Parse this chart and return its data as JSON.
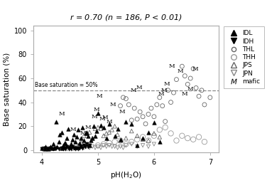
{
  "title": "$r$ = 0.70 ($n$ = 186, $P$ < 0.01)",
  "xlabel": "pH(H$_2$O)",
  "ylabel": "Base saturation (%)",
  "xlim": [
    3.85,
    7.15
  ],
  "ylim": [
    -2,
    104
  ],
  "xticks": [
    4,
    5,
    6,
    7
  ],
  "yticks": [
    0,
    20,
    40,
    60,
    80,
    100
  ],
  "dashed_line_y": 50,
  "dashed_label": "Base saturation = 50%",
  "IDL_x": [
    4.0,
    4.05,
    4.07,
    4.1,
    4.12,
    4.15,
    4.18,
    4.2,
    4.22,
    4.25,
    4.27,
    4.3,
    4.32,
    4.35,
    4.35,
    4.38,
    4.4,
    4.42,
    4.45,
    4.47,
    4.5,
    4.52,
    4.55,
    4.57,
    4.6,
    4.62,
    4.65,
    4.67,
    4.7,
    4.72,
    4.75,
    4.78,
    4.8,
    4.82,
    4.85,
    4.87,
    4.9,
    4.92,
    4.95,
    4.97,
    5.0,
    5.05,
    5.1,
    5.15,
    5.2,
    5.3,
    5.35,
    5.4,
    5.5,
    5.6,
    5.7,
    5.8,
    5.9,
    6.0,
    6.1
  ],
  "IDL_y": [
    2,
    1,
    3,
    2,
    1,
    3,
    2,
    5,
    2,
    24,
    3,
    7,
    13,
    2,
    15,
    4,
    6,
    6,
    10,
    18,
    3,
    5,
    9,
    13,
    7,
    11,
    17,
    6,
    10,
    19,
    8,
    14,
    15,
    12,
    4,
    8,
    10,
    20,
    12,
    16,
    31,
    21,
    19,
    10,
    22,
    12,
    18,
    9,
    24,
    22,
    4,
    10,
    15,
    23,
    7
  ],
  "IDH_x": [
    4.0,
    4.05,
    4.1,
    4.15,
    4.2,
    4.25,
    4.3,
    4.35,
    4.38,
    4.4,
    4.42,
    4.45,
    4.48,
    4.5,
    4.52,
    4.55,
    4.57,
    4.6,
    4.62,
    4.65,
    4.67,
    4.7,
    4.72,
    4.75,
    4.77,
    4.8,
    4.82,
    4.85
  ],
  "IDH_y": [
    1,
    2,
    1,
    2,
    1,
    2,
    1,
    2,
    1,
    2,
    1,
    3,
    1,
    2,
    1,
    3,
    2,
    1,
    2,
    1,
    2,
    3,
    2,
    4,
    3,
    5,
    3,
    4
  ],
  "THL_x": [
    5.4,
    5.45,
    5.5,
    5.55,
    5.6,
    5.65,
    5.7,
    5.75,
    5.8,
    5.85,
    5.9,
    5.95,
    6.0,
    6.05,
    6.1,
    6.15,
    6.2,
    6.25,
    6.3,
    6.35,
    6.4,
    6.5,
    6.55,
    6.6,
    6.65,
    6.7,
    6.75,
    6.8,
    6.85,
    6.9,
    7.0
  ],
  "THL_y": [
    37,
    44,
    43,
    38,
    25,
    35,
    26,
    32,
    28,
    22,
    30,
    35,
    28,
    38,
    44,
    37,
    24,
    50,
    40,
    48,
    59,
    70,
    62,
    55,
    60,
    68,
    52,
    45,
    50,
    38,
    44
  ],
  "THH_x": [
    4.85,
    4.9,
    4.95,
    5.0,
    5.05,
    5.1,
    5.15,
    5.2,
    5.25,
    5.3,
    5.35,
    5.4,
    5.45,
    5.5,
    5.55,
    5.6,
    5.65,
    5.7,
    5.75,
    5.8,
    5.85,
    5.9,
    5.95,
    6.0,
    6.05,
    6.1,
    6.15,
    6.2,
    6.25,
    6.3,
    6.35,
    6.4,
    6.45,
    6.5,
    6.55,
    6.6,
    6.65,
    6.7
  ],
  "THH_x2": [
    5.0,
    5.1,
    5.2,
    5.3,
    5.4,
    5.5,
    5.6,
    5.7,
    5.8,
    5.9,
    6.0,
    6.1,
    6.2,
    6.3,
    6.4,
    6.5,
    6.6,
    6.7,
    6.8,
    6.9
  ],
  "THH_y2": [
    4,
    5,
    6,
    7,
    8,
    5,
    7,
    9,
    11,
    8,
    12,
    17,
    19,
    14,
    8,
    12,
    10,
    9,
    11,
    7
  ],
  "JPS_x": [
    4.6,
    4.65,
    4.7,
    4.75,
    4.8,
    4.85,
    4.9,
    4.95,
    5.0,
    5.05,
    5.1,
    5.15,
    5.2,
    5.25,
    5.3,
    5.35,
    5.4,
    5.5,
    5.6,
    5.7,
    5.8,
    5.9,
    6.0,
    6.1
  ],
  "JPS_y": [
    2,
    4,
    6,
    12,
    14,
    15,
    10,
    18,
    19,
    18,
    12,
    14,
    15,
    17,
    20,
    13,
    8,
    10,
    16,
    12,
    9,
    8,
    14,
    11
  ],
  "JPN_x": [
    4.45,
    4.5,
    4.55,
    4.6,
    4.65,
    4.7,
    4.75,
    4.8,
    4.85,
    4.9,
    4.95,
    5.0,
    5.05,
    5.1,
    5.15,
    5.2,
    5.25,
    5.3,
    5.35,
    5.4,
    5.45,
    5.5,
    5.6,
    5.7,
    5.8,
    5.9,
    6.0
  ],
  "JPN_y": [
    1,
    2,
    1,
    2,
    2,
    3,
    2,
    3,
    2,
    3,
    2,
    3,
    2,
    4,
    3,
    4,
    3,
    3,
    2,
    3,
    2,
    4,
    5,
    3,
    4,
    3,
    5
  ],
  "mafic_x": [
    4.35,
    4.55,
    4.73,
    4.82,
    4.93,
    4.97,
    5.03,
    5.08,
    5.13,
    5.2,
    5.27,
    5.43,
    5.63,
    5.73,
    6.13,
    6.18,
    6.23,
    6.32,
    6.47,
    6.55,
    6.65,
    6.73
  ],
  "mafic_y": [
    30,
    17,
    14,
    19,
    28,
    34,
    45,
    26,
    27,
    24,
    38,
    32,
    50,
    52,
    47,
    50,
    55,
    70,
    66,
    47,
    51,
    68
  ]
}
